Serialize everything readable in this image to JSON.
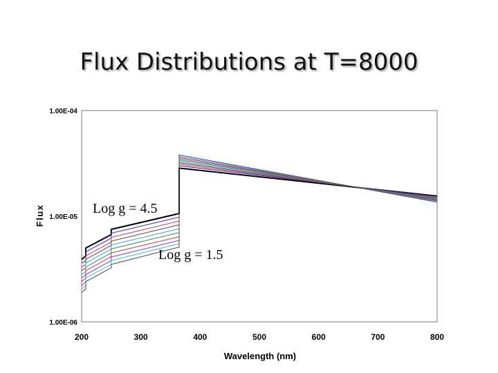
{
  "title": "Flux Distributions at T=8000",
  "chart_data": {
    "type": "line",
    "title": "Flux Distributions at T=8000",
    "xlabel": "Wavelength (nm)",
    "ylabel": "Flux",
    "xlim": [
      200,
      800
    ],
    "ylim": [
      1e-06,
      0.0001
    ],
    "y_scale": "log",
    "grid": false,
    "legend": "none",
    "x_ticks": [
      "200",
      "300",
      "400",
      "500",
      "600",
      "700",
      "800"
    ],
    "y_ticks": [
      "1.00E-06",
      "1.00E-05",
      "1.00E-04"
    ],
    "annotations": [
      "Log g = 4.5",
      "Log g = 1.5"
    ],
    "series": [
      {
        "color": "#000000",
        "x": [
          200,
          207,
          207,
          250,
          250,
          364.6,
          364.6,
          800
        ],
        "y": [
          3.9e-06,
          4.2e-06,
          5e-06,
          6.7e-06,
          7.5e-06,
          1.06e-05,
          2.85e-05,
          1.55e-05
        ]
      },
      {
        "color": "#2b2bb0",
        "x": [
          200,
          207,
          207,
          250,
          250,
          364.6,
          364.6,
          800
        ],
        "y": [
          3.6e-06,
          3.8e-06,
          4.6e-06,
          6.2e-06,
          6.9e-06,
          9.8e-06,
          3e-05,
          1.53e-05
        ]
      },
      {
        "color": "#c03080",
        "x": [
          200,
          207,
          207,
          250,
          250,
          364.6,
          364.6,
          800
        ],
        "y": [
          3.3e-06,
          3.5e-06,
          4.2e-06,
          5.7e-06,
          6.3e-06,
          9e-06,
          3.1e-05,
          1.5e-05
        ]
      },
      {
        "color": "#7a3c00",
        "x": [
          200,
          207,
          207,
          250,
          250,
          364.6,
          364.6,
          800
        ],
        "y": [
          3.05e-06,
          3.25e-06,
          3.9e-06,
          5.3e-06,
          5.8e-06,
          8.3e-06,
          3.2e-05,
          1.48e-05
        ]
      },
      {
        "color": "#22aadd",
        "x": [
          200,
          207,
          207,
          250,
          250,
          364.6,
          364.6,
          800
        ],
        "y": [
          2.8e-06,
          3e-06,
          3.6e-06,
          4.9e-06,
          5.35e-06,
          7.6e-06,
          3.3e-05,
          1.46e-05
        ]
      },
      {
        "color": "#2e8b57",
        "x": [
          200,
          207,
          207,
          250,
          250,
          364.6,
          364.6,
          800
        ],
        "y": [
          2.6e-06,
          2.8e-06,
          3.3e-06,
          4.5e-06,
          4.9e-06,
          7e-06,
          3.4e-05,
          1.44e-05
        ]
      },
      {
        "color": "#cc3333",
        "x": [
          200,
          207,
          207,
          250,
          250,
          364.6,
          364.6,
          800
        ],
        "y": [
          2.4e-06,
          2.6e-06,
          3.05e-06,
          4.15e-06,
          4.5e-06,
          6.4e-06,
          3.5e-05,
          1.42e-05
        ]
      },
      {
        "color": "#8a2be2",
        "x": [
          200,
          207,
          207,
          250,
          250,
          364.6,
          364.6,
          800
        ],
        "y": [
          2.2e-06,
          2.4e-06,
          2.8e-06,
          3.8e-06,
          4.1e-06,
          5.9e-06,
          3.6e-05,
          1.4e-05
        ]
      },
      {
        "color": "#40c0c0",
        "x": [
          200,
          207,
          207,
          250,
          250,
          364.6,
          364.6,
          800
        ],
        "y": [
          2.05e-06,
          2.2e-06,
          2.6e-06,
          3.5e-06,
          3.8e-06,
          5.5e-06,
          3.7e-05,
          1.38e-05
        ]
      },
      {
        "color": "#444444",
        "x": [
          200,
          207,
          207,
          250,
          250,
          364.6,
          364.6,
          800
        ],
        "y": [
          1.9e-06,
          2.05e-06,
          2.4e-06,
          3.25e-06,
          3.5e-06,
          5.1e-06,
          3.8e-05,
          1.36e-05
        ]
      }
    ]
  }
}
